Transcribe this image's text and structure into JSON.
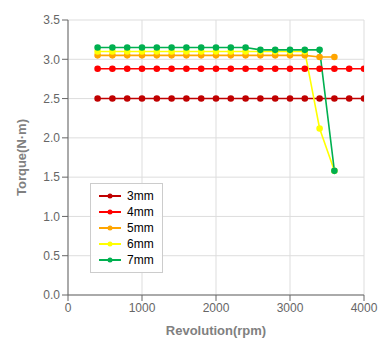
{
  "chart_data": {
    "type": "line",
    "x_label": "Revolution(rpm)",
    "y_label": "Torque(N·m)",
    "xlim": [
      0,
      4000
    ],
    "ylim": [
      0.0,
      3.5
    ],
    "xticks": [
      0,
      1000,
      2000,
      3000,
      4000
    ],
    "yticks": [
      {
        "value": 0.0,
        "label": "0.0"
      },
      0.5,
      {
        "value": 1.0,
        "label": "1.0"
      },
      1.5,
      {
        "value": 2.0,
        "label": "2.0"
      },
      2.5,
      {
        "value": 3.0,
        "label": "3.0"
      },
      3.5
    ],
    "grid": true,
    "legend": "lower left",
    "marker": "circle",
    "series": [
      {
        "name": "3mm",
        "color": "#c00000",
        "x": [
          400,
          600,
          800,
          1000,
          1200,
          1400,
          1600,
          1800,
          2000,
          2200,
          2400,
          2600,
          2800,
          3000,
          3200,
          3400,
          3600,
          3800,
          4000
        ],
        "values": [
          2.5,
          2.5,
          2.5,
          2.5,
          2.5,
          2.5,
          2.5,
          2.5,
          2.5,
          2.5,
          2.5,
          2.5,
          2.5,
          2.5,
          2.5,
          2.5,
          2.5,
          2.5,
          2.5
        ]
      },
      {
        "name": "4mm",
        "color": "#ff0000",
        "x": [
          400,
          600,
          800,
          1000,
          1200,
          1400,
          1600,
          1800,
          2000,
          2200,
          2400,
          2600,
          2800,
          3000,
          3200,
          3400,
          3600,
          3800,
          4000
        ],
        "values": [
          2.88,
          2.88,
          2.88,
          2.88,
          2.88,
          2.88,
          2.88,
          2.88,
          2.88,
          2.88,
          2.88,
          2.88,
          2.88,
          2.88,
          2.88,
          2.88,
          2.88,
          2.88,
          2.88
        ]
      },
      {
        "name": "5mm",
        "color": "#ffa500",
        "x": [
          400,
          600,
          800,
          1000,
          1200,
          1400,
          1600,
          1800,
          2000,
          2200,
          2400,
          2600,
          2800,
          3000,
          3200,
          3400,
          3600
        ],
        "values": [
          3.05,
          3.05,
          3.05,
          3.05,
          3.05,
          3.05,
          3.05,
          3.05,
          3.05,
          3.05,
          3.05,
          3.05,
          3.05,
          3.05,
          3.05,
          3.03,
          3.03
        ]
      },
      {
        "name": "6mm",
        "color": "#ffff00",
        "x": [
          400,
          600,
          800,
          1000,
          1200,
          1400,
          1600,
          1800,
          2000,
          2200,
          2400,
          2600,
          2800,
          3000,
          3200,
          3400,
          3600
        ],
        "values": [
          3.1,
          3.1,
          3.1,
          3.1,
          3.1,
          3.1,
          3.1,
          3.1,
          3.1,
          3.1,
          3.1,
          3.1,
          3.1,
          3.1,
          3.1,
          2.12,
          1.58
        ]
      },
      {
        "name": "7mm",
        "color": "#00b050",
        "x": [
          400,
          600,
          800,
          1000,
          1200,
          1400,
          1600,
          1800,
          2000,
          2200,
          2400,
          2600,
          2800,
          3000,
          3200,
          3400,
          3600
        ],
        "values": [
          3.15,
          3.15,
          3.15,
          3.15,
          3.15,
          3.15,
          3.15,
          3.15,
          3.15,
          3.15,
          3.15,
          3.12,
          3.12,
          3.12,
          3.12,
          3.12,
          1.58
        ]
      }
    ]
  }
}
